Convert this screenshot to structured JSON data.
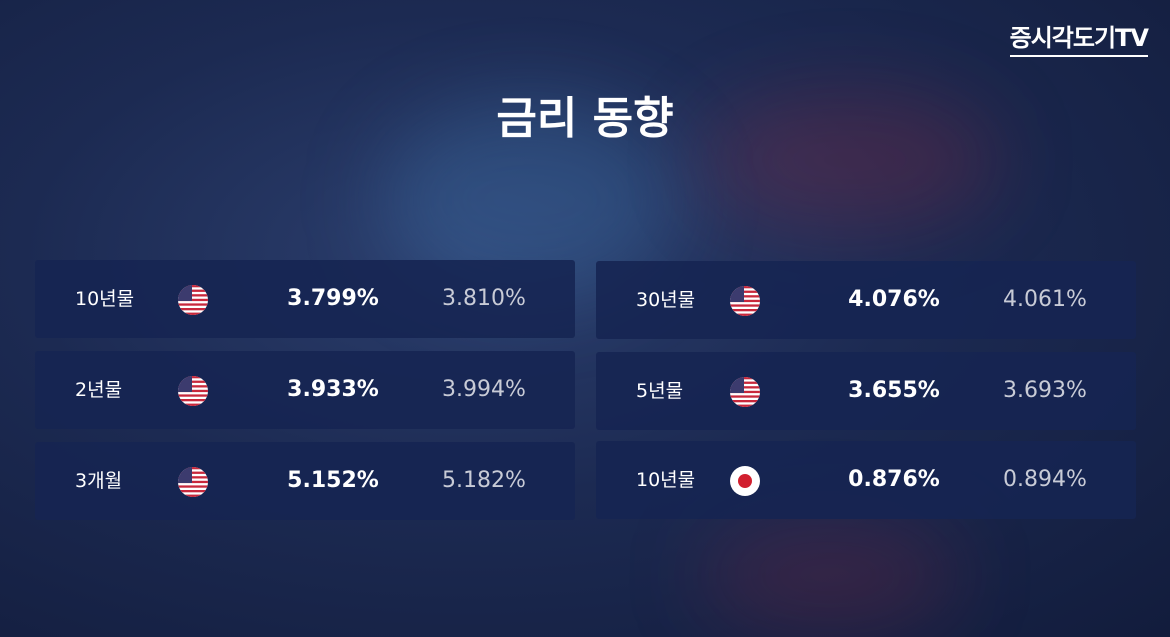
{
  "logo": "증시각도기TV",
  "title": "금리 동향",
  "columns": [
    [
      {
        "term": "10년물",
        "current": "3.799%",
        "previous": "3.810%"
      },
      {
        "term": "2년물",
        "current": "3.933%",
        "previous": "3.994%"
      },
      {
        "term": "3개월",
        "current": "5.152%",
        "previous": "5.182%"
      }
    ],
    [
      {
        "term": "30년물",
        "current": "4.076%",
        "previous": "4.061%"
      },
      {
        "term": "5년물",
        "current": "3.655%",
        "previous": "3.693%"
      },
      {
        "term": "10년물",
        "current": "0.876%",
        "previous": "0.894%"
      }
    ]
  ]
}
